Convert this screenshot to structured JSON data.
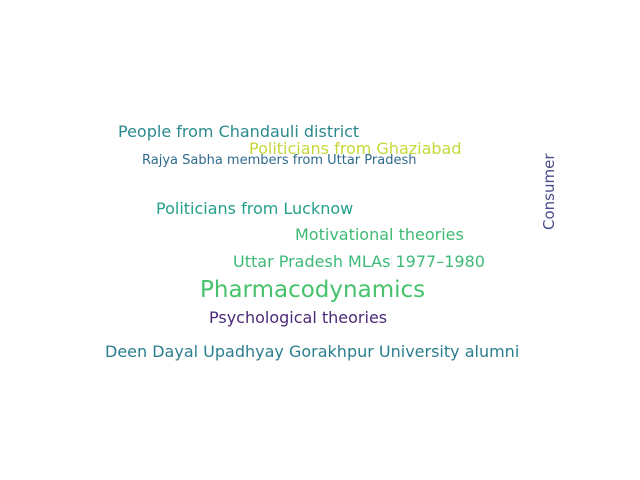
{
  "word_cloud": {
    "words": [
      {
        "text": "People from Chandauli district",
        "color": "#2a8a8c"
      },
      {
        "text": "Politicians from Ghaziabad",
        "color": "#c5d93a"
      },
      {
        "text": "Rajya Sabha members from Uttar Pradesh",
        "color": "#2f6b8e"
      },
      {
        "text": "Politicians from Lucknow",
        "color": "#24a08a"
      },
      {
        "text": "Motivational theories",
        "color": "#3fbb74"
      },
      {
        "text": "Uttar Pradesh MLAs 1977–1980",
        "color": "#3dba77"
      },
      {
        "text": "Pharmacodynamics",
        "color": "#46c26c"
      },
      {
        "text": "Psychological theories",
        "color": "#4b2a78"
      },
      {
        "text": "Deen Dayal Upadhyay Gorakhpur University alumni",
        "color": "#2b7e8e"
      },
      {
        "text": "Consumer",
        "color": "#4a4d8c"
      }
    ]
  }
}
